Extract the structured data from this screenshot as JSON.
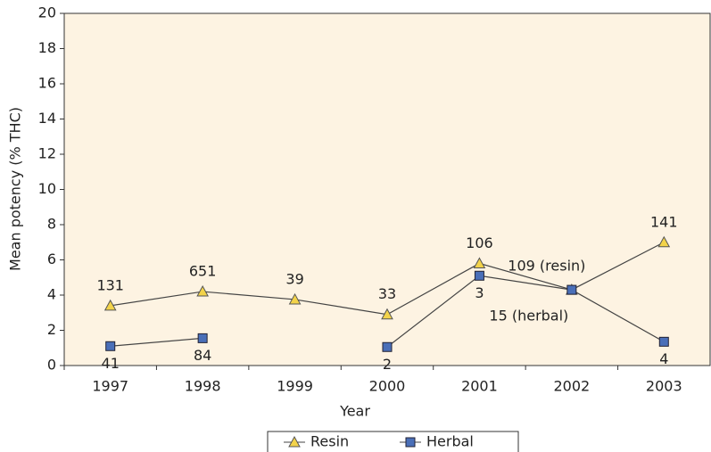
{
  "chart_data": {
    "type": "line",
    "x_label": "Year",
    "y_label": "Mean potency (% THC)",
    "categories": [
      "1997",
      "1998",
      "1999",
      "2000",
      "2001",
      "2002",
      "2003"
    ],
    "series": [
      {
        "name": "Resin",
        "color": "#f3d34a",
        "marker": "triangle",
        "values": [
          3.4,
          4.2,
          3.75,
          2.9,
          5.8,
          4.3,
          7.0
        ],
        "labels": [
          131,
          651,
          39,
          33,
          106,
          "109 (resin)",
          141
        ]
      },
      {
        "name": "Herbal",
        "color": "#4a6fb8",
        "marker": "square",
        "values": [
          1.1,
          1.55,
          null,
          1.05,
          5.1,
          4.3,
          1.35
        ],
        "labels": [
          41,
          84,
          null,
          2,
          3,
          "15 (herbal)",
          4
        ]
      }
    ],
    "ylim": [
      0,
      20
    ],
    "yticks": [
      0,
      2,
      4,
      6,
      8,
      10,
      12,
      14,
      16,
      18,
      20
    ],
    "background": "#fdf3e2"
  }
}
